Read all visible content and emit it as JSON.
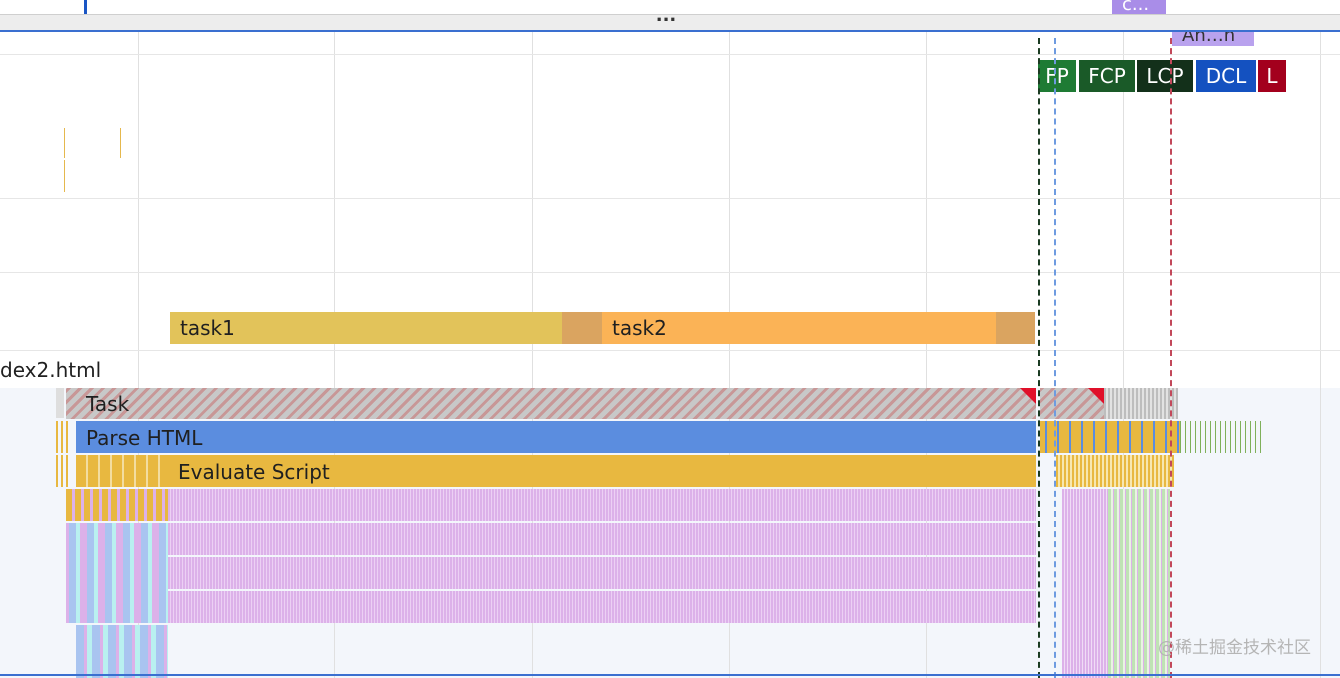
{
  "top_bar": {
    "drag_handle_label": "...",
    "animation_chip_top": "c...",
    "animation_chip_bottom": "An…n"
  },
  "timing_markers": [
    {
      "label": "FP",
      "color": "#1e7b34"
    },
    {
      "label": "FCP",
      "color": "#1a5a28"
    },
    {
      "label": "LCP",
      "color": "#13301a"
    },
    {
      "label": "DCL",
      "color": "#1451c0"
    },
    {
      "label": "L",
      "color": "#a3001d"
    }
  ],
  "user_timings": [
    {
      "label": "task1",
      "color": "#e2c35a"
    },
    {
      "label": "task2",
      "color": "#fbb356"
    }
  ],
  "main_track": {
    "title": "dex2.html",
    "rows": {
      "task": "Task",
      "parse_html": "Parse HTML",
      "evaluate_script": "Evaluate Script"
    }
  },
  "colors": {
    "task": "#c7c7c7",
    "parse_html": "#5b8ddf",
    "evaluate_script": "#e8b840",
    "function_call": "#e0b4ec",
    "gridline": "#e0e0e0"
  },
  "watermark": "@稀土掘金技术社区"
}
